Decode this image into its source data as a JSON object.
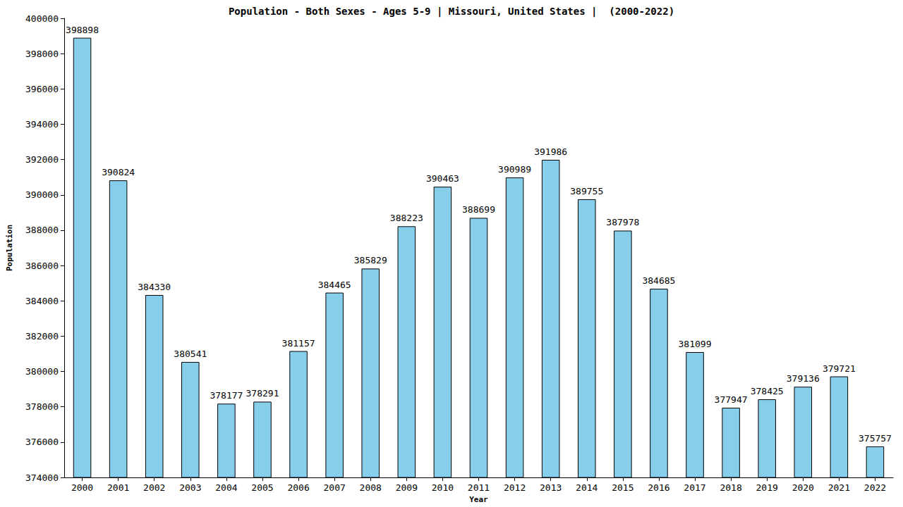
{
  "chart_data": {
    "type": "bar",
    "title": "Population - Both Sexes - Ages 5-9 | Missouri, United States |  (2000-2022)",
    "x_label": "Year",
    "y_label": "Population",
    "categories": [
      "2000",
      "2001",
      "2002",
      "2003",
      "2004",
      "2005",
      "2006",
      "2007",
      "2008",
      "2009",
      "2010",
      "2011",
      "2012",
      "2013",
      "2014",
      "2015",
      "2016",
      "2017",
      "2018",
      "2019",
      "2020",
      "2021",
      "2022"
    ],
    "values": [
      398898,
      390824,
      384330,
      380541,
      378177,
      378291,
      381157,
      384465,
      385829,
      388223,
      390463,
      388699,
      390989,
      391986,
      389755,
      387978,
      384685,
      381099,
      377947,
      378425,
      379136,
      379721,
      375757
    ],
    "color": "#87ceeb",
    "ylim": [
      374000,
      400000
    ],
    "yticks": [
      374000,
      376000,
      378000,
      380000,
      382000,
      384000,
      386000,
      388000,
      390000,
      392000,
      394000,
      396000,
      398000,
      400000
    ],
    "grid": false,
    "data_labels": true
  }
}
